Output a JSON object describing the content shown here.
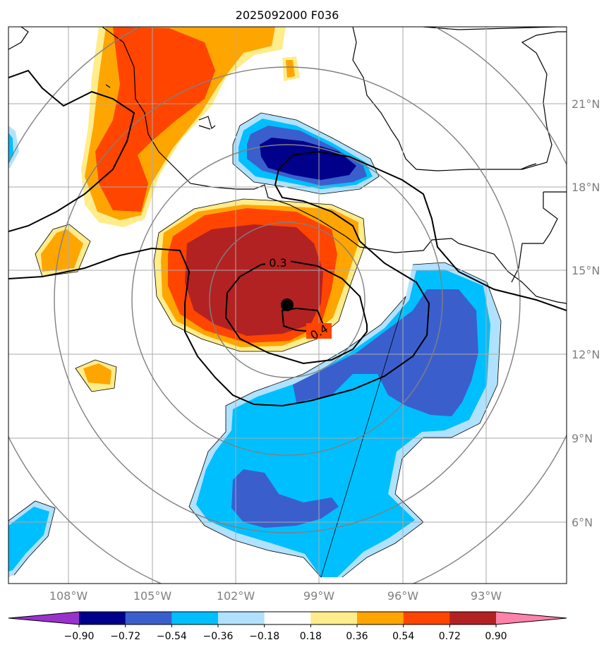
{
  "title": "2025092000 F036",
  "map": {
    "lat_ticks": [
      "21°N",
      "18°N",
      "15°N",
      "12°N",
      "9°N",
      "6°N"
    ],
    "lon_ticks": [
      "108°W",
      "105°W",
      "102°W",
      "99°W",
      "96°W",
      "93°W"
    ],
    "contour_labels": [
      "0.3",
      "0.4"
    ],
    "grid_color": "#aaaaaa",
    "range_ring_color": "#808080",
    "center_marker": "storm-center-dot"
  },
  "colorbar": {
    "ticks": [
      "−0.90",
      "−0.72",
      "−0.54",
      "−0.36",
      "−0.18",
      "0.18",
      "0.36",
      "0.54",
      "0.72",
      "0.90"
    ],
    "colors": [
      "#9932cc",
      "#00008b",
      "#3a5fcd",
      "#00bfff",
      "#b0e2ff",
      "#ffffff",
      "#ffec8b",
      "#ffa500",
      "#ff4500",
      "#b22222",
      "#ff82ab"
    ]
  }
}
